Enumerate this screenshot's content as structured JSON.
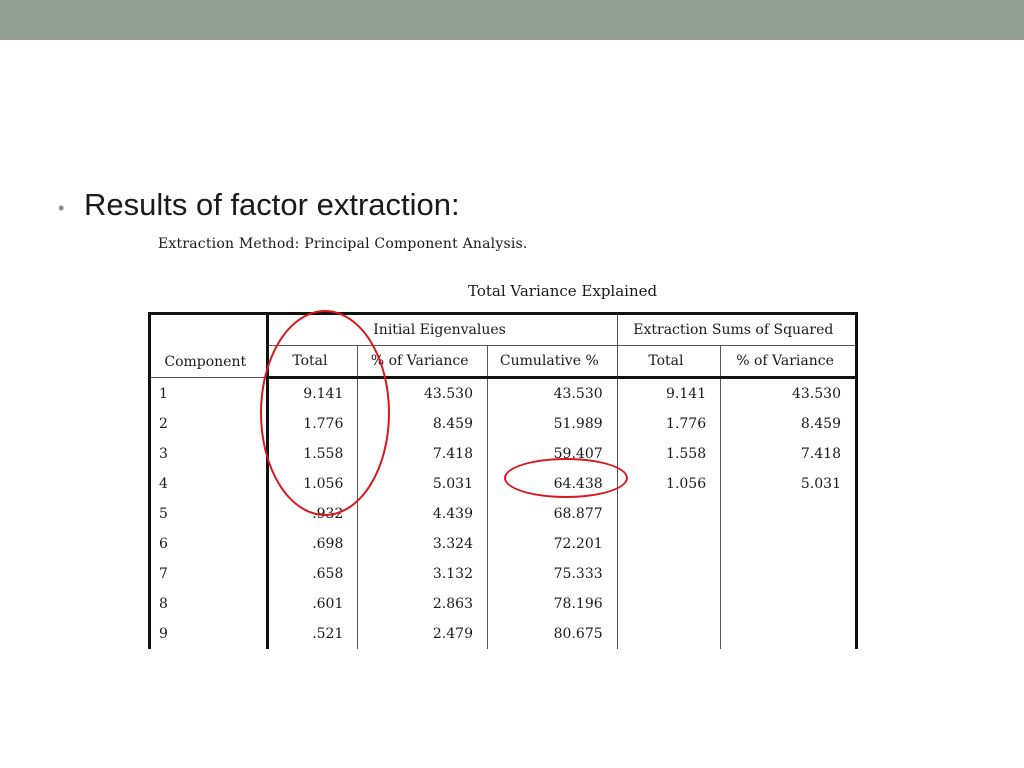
{
  "slide": {
    "bullet": "•",
    "text": "Results of factor extraction:"
  },
  "output": {
    "method_note": "Extraction Method: Principal Component Analysis.",
    "table_title": "Total Variance Explained",
    "group_headers": {
      "initial": "Initial Eigenvalues",
      "extraction": "Extraction Sums of Squared"
    },
    "columns": {
      "component": "Component",
      "total": "Total",
      "pct_variance": "% of Variance",
      "cumulative": "Cumulative %",
      "ext_total": "Total",
      "ext_pct_variance": "% of Variance"
    },
    "rows": [
      {
        "component": "1",
        "total": "9.141",
        "pct": "43.530",
        "cum": "43.530",
        "ext_total": "9.141",
        "ext_pct": "43.530"
      },
      {
        "component": "2",
        "total": "1.776",
        "pct": "8.459",
        "cum": "51.989",
        "ext_total": "1.776",
        "ext_pct": "8.459"
      },
      {
        "component": "3",
        "total": "1.558",
        "pct": "7.418",
        "cum": "59.407",
        "ext_total": "1.558",
        "ext_pct": "7.418"
      },
      {
        "component": "4",
        "total": "1.056",
        "pct": "5.031",
        "cum": "64.438",
        "ext_total": "1.056",
        "ext_pct": "5.031"
      },
      {
        "component": "5",
        "total": ".932",
        "pct": "4.439",
        "cum": "68.877",
        "ext_total": "",
        "ext_pct": ""
      },
      {
        "component": "6",
        "total": ".698",
        "pct": "3.324",
        "cum": "72.201",
        "ext_total": "",
        "ext_pct": ""
      },
      {
        "component": "7",
        "total": ".658",
        "pct": "3.132",
        "cum": "75.333",
        "ext_total": "",
        "ext_pct": ""
      },
      {
        "component": "8",
        "total": ".601",
        "pct": "2.863",
        "cum": "78.196",
        "ext_total": "",
        "ext_pct": ""
      },
      {
        "component": "9",
        "total": ".521",
        "pct": "2.479",
        "cum": "80.675",
        "ext_total": "",
        "ext_pct": ""
      }
    ]
  },
  "colors": {
    "top_bar": "#939f95",
    "annotation": "#d9161b"
  }
}
